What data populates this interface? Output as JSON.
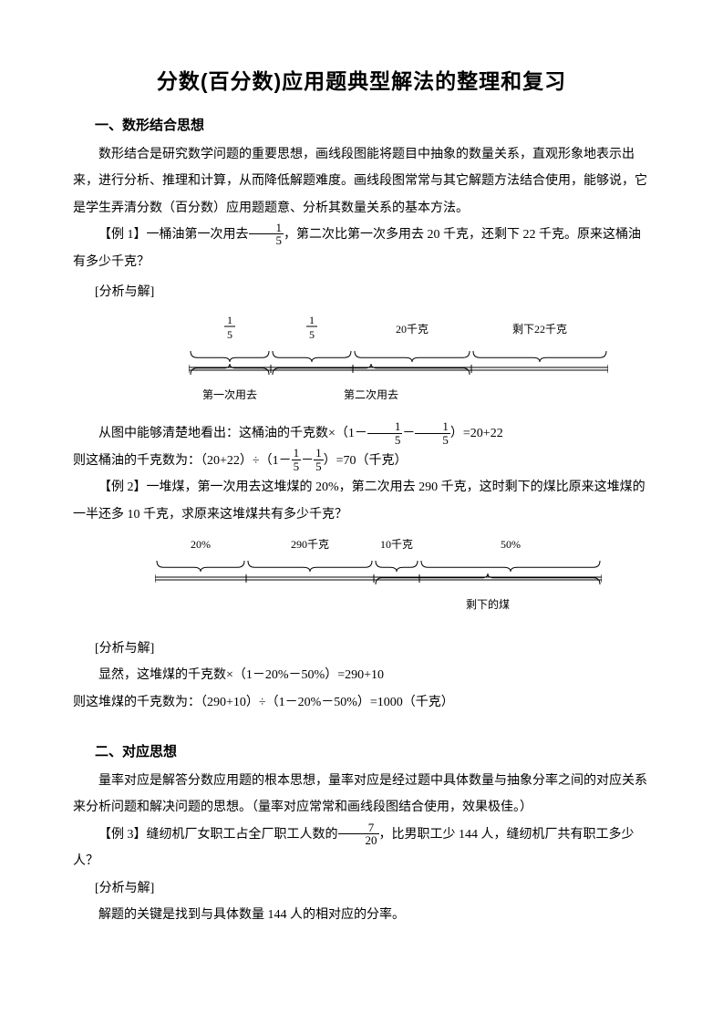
{
  "title": "分数(百分数)应用题典型解法的整理和复习",
  "section1": {
    "heading": "一、数形结合思想",
    "p1": "数形结合是研究数学问题的重要思想，画线段图能将题目中抽象的数量关系，直观形象地表示出来，进行分析、推理和计算，从而降低解题难度。画线段图常常与其它解题方法结合使用，能够说，它是学生弄清分数（百分数）应用题题意、分析其数量关系的基本方法。"
  },
  "ex1": {
    "label": "【例 1】",
    "before_frac": "一桶油第一次用去",
    "frac_num": "1",
    "frac_den": "5",
    "after_frac": "，第二次比第一次多用去 20 千克，还剩下 22 千克。原来这桶油有多少千克？",
    "analysis_label": "[分析与解]",
    "diagram": {
      "labels_top": [
        "",
        "20千克",
        "剩下22千克"
      ],
      "frac1_num": "1",
      "frac1_den": "5",
      "frac2_num": "1",
      "frac2_den": "5",
      "bottom_labels": [
        "第一次用去",
        "第二次用去"
      ],
      "seg_widths": [
        90,
        90,
        130,
        150
      ],
      "seg1_color": "#000000",
      "line_color": "#000000",
      "label_fontsize": 12,
      "total_width": 460
    },
    "line1_pre": "从图中能够清楚地看出：这桶油的千克数×（1－",
    "line1_mid": "－",
    "line1_post": "）=20+22",
    "f1_num": "1",
    "f1_den": "5",
    "f2_num": "1",
    "f2_den": "5",
    "line2_pre": "则这桶油的千克数为：（20+22）÷（1－",
    "line2_mid": "－",
    "line2_post": "）=70（千克）",
    "f3_num": "1",
    "f3_den": "5",
    "f4_num": "1",
    "f4_den": "5"
  },
  "ex2": {
    "label": "【例 2】",
    "text": "一堆煤，第一次用去这堆煤的 20%，第二次用去 290 千克，这时剩下的煤比原来这堆煤的一半还多 10 千克，求原来这堆煤共有多少千克？",
    "diagram": {
      "top_labels": [
        "20%",
        "290千克",
        "10千克",
        "50%"
      ],
      "bottom_label": "剩下的煤",
      "seg_widths": [
        100,
        140,
        50,
        200
      ],
      "line_color": "#000000",
      "label_fontsize": 12,
      "total_width": 490
    },
    "analysis_label": "[分析与解]",
    "line1": "显然，这堆煤的千克数×（1－20%－50%）=290+10",
    "line2": "则这堆煤的千克数为：（290+10）÷（1－20%－50%）=1000（千克）"
  },
  "section2": {
    "heading": "二、对应思想",
    "p1": "量率对应是解答分数应用题的根本思想，量率对应是经过题中具体数量与抽象分率之间的对应关系来分析问题和解决问题的思想。（量率对应常常和画线段图结合使用，效果极佳。）"
  },
  "ex3": {
    "label": "【例 3】",
    "before_frac": "缝纫机厂女职工占全厂职工人数的",
    "frac_num": "7",
    "frac_den": "20",
    "after_frac": "，比男职工少 144 人，缝纫机厂共有职工多少人？",
    "analysis_label": "[分析与解]",
    "line1": "解题的关键是找到与具体数量 144 人的相对应的分率。"
  }
}
